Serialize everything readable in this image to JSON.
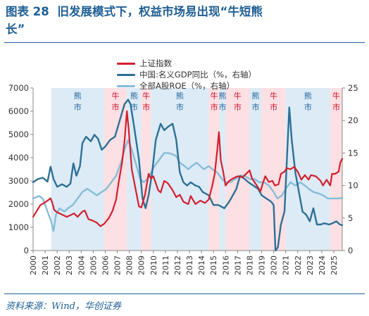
{
  "header": {
    "figure_label": "图表 28",
    "title_line1": "旧发展模式下，权益市场易出现“牛短熊",
    "title_line2": "长”"
  },
  "source": "资料来源：Wind，华创证券",
  "colors": {
    "title": "#1f5f94",
    "index": "#d21f2f",
    "gdp": "#2e6f96",
    "roe": "#87bcd6",
    "bull_band": "#fde0e3",
    "bear_band": "#dcebf6"
  },
  "chart_data": {
    "type": "line",
    "legend": {
      "placement": "top-center",
      "entries": [
        {
          "key": "index",
          "label": "上证指数",
          "axis": "left"
        },
        {
          "key": "gdp",
          "label": "中国:名义GDP同比（%，右轴）",
          "axis": "right"
        },
        {
          "key": "roe",
          "label": "全部A股ROE（%，右轴）",
          "axis": "right"
        }
      ]
    },
    "left_axis": {
      "min": 0,
      "max": 7000,
      "ticks": [
        0,
        1000,
        2000,
        3000,
        4000,
        5000,
        6000,
        7000
      ]
    },
    "right_axis": {
      "min": 0,
      "max": 25,
      "ticks": [
        0,
        5,
        10,
        15,
        20,
        25
      ]
    },
    "x_axis": {
      "min": 2000,
      "max": 2025.7,
      "tick_labels": [
        "2000",
        "2001",
        "2002",
        "2003",
        "2004",
        "2005",
        "2006",
        "2007",
        "2008",
        "2009",
        "2010",
        "2011",
        "2012",
        "2013",
        "2014",
        "2015",
        "2016",
        "2017",
        "2018",
        "2019",
        "2020",
        "2021",
        "2022",
        "2023",
        "2024",
        "2025"
      ]
    },
    "regimes": [
      {
        "label": "熊\n市",
        "kind": "bear",
        "start": 2001.5,
        "end": 2005.9
      },
      {
        "label": "牛\n市",
        "kind": "bull",
        "start": 2005.9,
        "end": 2007.8
      },
      {
        "label": "熊\n市",
        "kind": "bear",
        "start": 2007.8,
        "end": 2009.0
      },
      {
        "label": "牛\n市",
        "kind": "bull",
        "start": 2009.0,
        "end": 2009.8
      },
      {
        "label": "熊\n市",
        "kind": "bear",
        "start": 2009.8,
        "end": 2014.6
      },
      {
        "label": "牛\n市",
        "kind": "bull",
        "start": 2014.6,
        "end": 2015.5
      },
      {
        "label": "熊\n市",
        "kind": "bear",
        "start": 2015.5,
        "end": 2016.0
      },
      {
        "label": "牛\n市",
        "kind": "bull",
        "start": 2016.0,
        "end": 2018.0
      },
      {
        "label": "熊\n市",
        "kind": "bear",
        "start": 2018.0,
        "end": 2019.0
      },
      {
        "label": "牛\n市",
        "kind": "bull",
        "start": 2019.0,
        "end": 2021.0
      },
      {
        "label": "熊\n市",
        "kind": "bear",
        "start": 2021.0,
        "end": 2024.7
      },
      {
        "label": "牛\n市",
        "kind": "bull",
        "start": 2024.7,
        "end": 2025.7
      }
    ],
    "series": [
      {
        "key": "index",
        "name": "上证指数",
        "axis": "left",
        "points": [
          [
            2000.0,
            1450
          ],
          [
            2000.3,
            1700
          ],
          [
            2000.6,
            1950
          ],
          [
            2000.9,
            2050
          ],
          [
            2001.2,
            2150
          ],
          [
            2001.45,
            2250
          ],
          [
            2001.6,
            2050
          ],
          [
            2001.75,
            1750
          ],
          [
            2002.0,
            1650
          ],
          [
            2002.4,
            1550
          ],
          [
            2002.8,
            1450
          ],
          [
            2003.1,
            1520
          ],
          [
            2003.4,
            1600
          ],
          [
            2003.7,
            1450
          ],
          [
            2004.1,
            1680
          ],
          [
            2004.3,
            1720
          ],
          [
            2004.6,
            1350
          ],
          [
            2004.9,
            1300
          ],
          [
            2005.3,
            1200
          ],
          [
            2005.6,
            1050
          ],
          [
            2005.9,
            1150
          ],
          [
            2006.3,
            1400
          ],
          [
            2006.6,
            1700
          ],
          [
            2006.9,
            2200
          ],
          [
            2007.1,
            2900
          ],
          [
            2007.4,
            3800
          ],
          [
            2007.6,
            4700
          ],
          [
            2007.8,
            6000
          ],
          [
            2007.95,
            5200
          ],
          [
            2008.2,
            3500
          ],
          [
            2008.5,
            2700
          ],
          [
            2008.8,
            1900
          ],
          [
            2009.0,
            1850
          ],
          [
            2009.3,
            2400
          ],
          [
            2009.6,
            3300
          ],
          [
            2009.8,
            3100
          ],
          [
            2010.0,
            3200
          ],
          [
            2010.4,
            2600
          ],
          [
            2010.6,
            2500
          ],
          [
            2010.9,
            3000
          ],
          [
            2011.2,
            2900
          ],
          [
            2011.6,
            2600
          ],
          [
            2011.9,
            2300
          ],
          [
            2012.2,
            2400
          ],
          [
            2012.5,
            2100
          ],
          [
            2012.9,
            2000
          ],
          [
            2013.1,
            2350
          ],
          [
            2013.5,
            2000
          ],
          [
            2013.9,
            2150
          ],
          [
            2014.3,
            2050
          ],
          [
            2014.6,
            2200
          ],
          [
            2014.9,
            2800
          ],
          [
            2015.1,
            3300
          ],
          [
            2015.3,
            4300
          ],
          [
            2015.45,
            5100
          ],
          [
            2015.6,
            3900
          ],
          [
            2015.8,
            3400
          ],
          [
            2016.0,
            2800
          ],
          [
            2016.3,
            3000
          ],
          [
            2016.6,
            3100
          ],
          [
            2017.0,
            3200
          ],
          [
            2017.4,
            3150
          ],
          [
            2017.8,
            3350
          ],
          [
            2018.0,
            3450
          ],
          [
            2018.2,
            3100
          ],
          [
            2018.6,
            2800
          ],
          [
            2018.9,
            2550
          ],
          [
            2019.1,
            2900
          ],
          [
            2019.3,
            3200
          ],
          [
            2019.6,
            2950
          ],
          [
            2019.9,
            3000
          ],
          [
            2020.1,
            2800
          ],
          [
            2020.4,
            2850
          ],
          [
            2020.6,
            3300
          ],
          [
            2020.9,
            3400
          ],
          [
            2021.1,
            3550
          ],
          [
            2021.4,
            3500
          ],
          [
            2021.7,
            3600
          ],
          [
            2022.0,
            3400
          ],
          [
            2022.3,
            3050
          ],
          [
            2022.6,
            3250
          ],
          [
            2022.9,
            3050
          ],
          [
            2023.1,
            3250
          ],
          [
            2023.5,
            3200
          ],
          [
            2023.9,
            3000
          ],
          [
            2024.1,
            2800
          ],
          [
            2024.4,
            3050
          ],
          [
            2024.7,
            2800
          ],
          [
            2024.85,
            3300
          ],
          [
            2025.1,
            3300
          ],
          [
            2025.4,
            3400
          ],
          [
            2025.55,
            3800
          ],
          [
            2025.7,
            3950
          ]
        ]
      },
      {
        "key": "gdp",
        "name": "中国:名义GDP同比（%，右轴）",
        "axis": "right",
        "points": [
          [
            2000.0,
            10.5
          ],
          [
            2000.4,
            11.0
          ],
          [
            2000.8,
            11.2
          ],
          [
            2001.2,
            10.6
          ],
          [
            2001.45,
            12.9
          ],
          [
            2001.7,
            11.0
          ],
          [
            2002.0,
            9.8
          ],
          [
            2002.4,
            10.2
          ],
          [
            2002.8,
            9.8
          ],
          [
            2003.1,
            10.3
          ],
          [
            2003.35,
            13.4
          ],
          [
            2003.6,
            11.5
          ],
          [
            2003.9,
            13.0
          ],
          [
            2004.1,
            16.5
          ],
          [
            2004.4,
            17.5
          ],
          [
            2004.8,
            16.8
          ],
          [
            2005.1,
            17.8
          ],
          [
            2005.4,
            17.2
          ],
          [
            2005.7,
            15.5
          ],
          [
            2006.0,
            16.0
          ],
          [
            2006.4,
            17.0
          ],
          [
            2006.8,
            17.5
          ],
          [
            2007.2,
            20.0
          ],
          [
            2007.6,
            22.5
          ],
          [
            2007.9,
            23.2
          ],
          [
            2008.1,
            22.5
          ],
          [
            2008.4,
            19.0
          ],
          [
            2008.8,
            14.0
          ],
          [
            2009.1,
            8.0
          ],
          [
            2009.35,
            6.5
          ],
          [
            2009.6,
            8.5
          ],
          [
            2009.9,
            12.0
          ],
          [
            2010.2,
            17.0
          ],
          [
            2010.6,
            19.5
          ],
          [
            2010.9,
            18.5
          ],
          [
            2011.2,
            19.0
          ],
          [
            2011.6,
            19.5
          ],
          [
            2011.9,
            17.0
          ],
          [
            2012.2,
            12.0
          ],
          [
            2012.5,
            10.5
          ],
          [
            2012.8,
            10.0
          ],
          [
            2013.1,
            10.5
          ],
          [
            2013.5,
            10.0
          ],
          [
            2013.8,
            9.8
          ],
          [
            2014.1,
            9.0
          ],
          [
            2014.6,
            8.5
          ],
          [
            2015.0,
            7.0
          ],
          [
            2015.4,
            7.0
          ],
          [
            2015.9,
            6.5
          ],
          [
            2016.3,
            7.5
          ],
          [
            2016.6,
            8.5
          ],
          [
            2016.9,
            9.5
          ],
          [
            2017.2,
            11.5
          ],
          [
            2017.6,
            11.0
          ],
          [
            2017.9,
            10.5
          ],
          [
            2018.3,
            10.0
          ],
          [
            2018.7,
            9.5
          ],
          [
            2019.0,
            8.5
          ],
          [
            2019.4,
            8.0
          ],
          [
            2019.8,
            7.5
          ],
          [
            2020.0,
            7.0
          ],
          [
            2020.15,
            -5.0
          ],
          [
            2020.35,
            0.5
          ],
          [
            2020.6,
            4.0
          ],
          [
            2020.9,
            6.0
          ],
          [
            2021.1,
            14.0
          ],
          [
            2021.3,
            22.0
          ],
          [
            2021.5,
            17.0
          ],
          [
            2021.8,
            12.0
          ],
          [
            2022.1,
            9.0
          ],
          [
            2022.4,
            6.0
          ],
          [
            2022.7,
            5.5
          ],
          [
            2023.0,
            4.5
          ],
          [
            2023.3,
            6.5
          ],
          [
            2023.6,
            4.0
          ],
          [
            2023.9,
            4.0
          ],
          [
            2024.2,
            4.2
          ],
          [
            2024.6,
            4.0
          ],
          [
            2024.9,
            4.2
          ],
          [
            2025.2,
            4.5
          ],
          [
            2025.5,
            4.0
          ],
          [
            2025.7,
            3.9
          ]
        ]
      },
      {
        "key": "roe",
        "name": "全部A股ROE（%，右轴）",
        "axis": "right",
        "points": [
          [
            2000.0,
            8.0
          ],
          [
            2000.5,
            8.4
          ],
          [
            2000.8,
            8.0
          ],
          [
            2001.1,
            6.5
          ],
          [
            2001.5,
            4.5
          ],
          [
            2001.7,
            3.0
          ],
          [
            2001.9,
            5.5
          ],
          [
            2002.2,
            6.5
          ],
          [
            2002.6,
            6.0
          ],
          [
            2002.9,
            6.5
          ],
          [
            2003.3,
            7.0
          ],
          [
            2003.7,
            8.0
          ],
          [
            2004.1,
            9.0
          ],
          [
            2004.5,
            9.5
          ],
          [
            2004.9,
            9.0
          ],
          [
            2005.3,
            8.5
          ],
          [
            2005.7,
            9.0
          ],
          [
            2006.1,
            9.5
          ],
          [
            2006.5,
            10.5
          ],
          [
            2006.9,
            11.5
          ],
          [
            2007.3,
            13.5
          ],
          [
            2007.6,
            15.5
          ],
          [
            2007.9,
            17.0
          ],
          [
            2008.2,
            15.5
          ],
          [
            2008.6,
            13.0
          ],
          [
            2008.9,
            11.0
          ],
          [
            2009.2,
            10.5
          ],
          [
            2009.5,
            11.0
          ],
          [
            2009.8,
            12.0
          ],
          [
            2010.1,
            13.0
          ],
          [
            2010.5,
            14.0
          ],
          [
            2010.9,
            15.0
          ],
          [
            2011.2,
            15.0
          ],
          [
            2011.6,
            14.8
          ],
          [
            2011.9,
            14.5
          ],
          [
            2012.2,
            13.5
          ],
          [
            2012.6,
            13.0
          ],
          [
            2012.9,
            12.5
          ],
          [
            2013.2,
            13.0
          ],
          [
            2013.6,
            13.5
          ],
          [
            2013.9,
            13.0
          ],
          [
            2014.2,
            12.5
          ],
          [
            2014.6,
            13.0
          ],
          [
            2014.9,
            12.5
          ],
          [
            2015.3,
            12.0
          ],
          [
            2015.7,
            11.0
          ],
          [
            2016.0,
            10.5
          ],
          [
            2016.4,
            10.5
          ],
          [
            2016.8,
            11.0
          ],
          [
            2017.2,
            11.5
          ],
          [
            2017.6,
            11.5
          ],
          [
            2018.0,
            11.0
          ],
          [
            2018.4,
            11.0
          ],
          [
            2018.8,
            10.5
          ],
          [
            2019.2,
            10.5
          ],
          [
            2019.6,
            10.0
          ],
          [
            2020.0,
            9.0
          ],
          [
            2020.3,
            8.0
          ],
          [
            2020.7,
            8.5
          ],
          [
            2021.0,
            9.5
          ],
          [
            2021.4,
            10.5
          ],
          [
            2021.8,
            10.0
          ],
          [
            2022.2,
            10.5
          ],
          [
            2022.6,
            10.0
          ],
          [
            2022.9,
            9.5
          ],
          [
            2023.3,
            9.0
          ],
          [
            2023.7,
            8.8
          ],
          [
            2024.1,
            8.5
          ],
          [
            2024.5,
            8.0
          ],
          [
            2024.9,
            8.0
          ],
          [
            2025.3,
            8.0
          ],
          [
            2025.7,
            8.1
          ]
        ]
      }
    ]
  }
}
